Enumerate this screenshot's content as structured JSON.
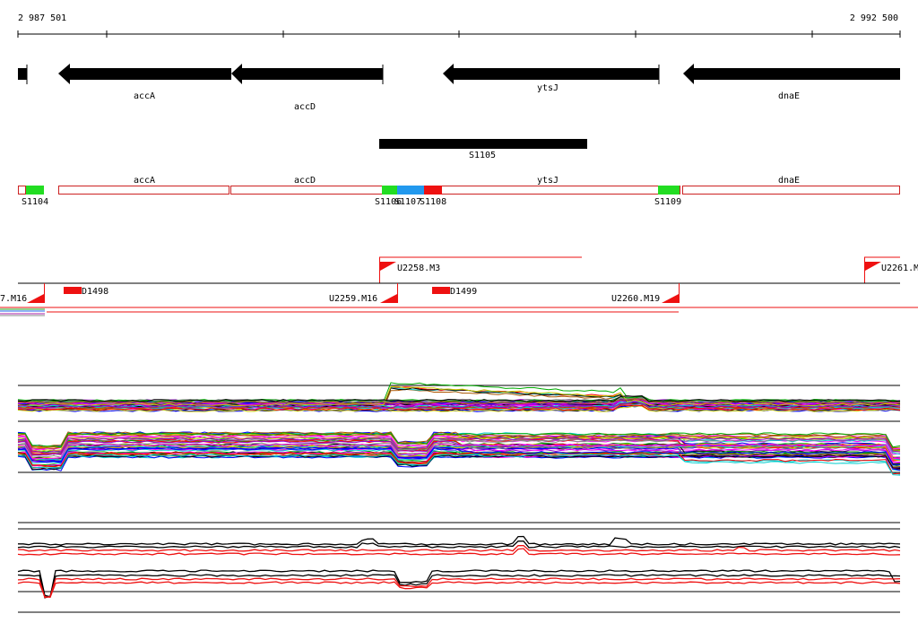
{
  "ruler": {
    "start": "2 987 501",
    "end": "2 992 500"
  },
  "genes": [
    {
      "name": "accA"
    },
    {
      "name": "accD"
    },
    {
      "name": "ytsJ"
    },
    {
      "name": "dnaE"
    }
  ],
  "feature": {
    "name": "S1105"
  },
  "segments": {
    "genes": [
      "accA",
      "accD",
      "ytsJ",
      "dnaE"
    ],
    "markers": [
      "S1104",
      "S1106",
      "S1107",
      "S1108",
      "S1109"
    ]
  },
  "promoters": [
    {
      "name": "U2258.M3"
    },
    {
      "name": "U2261.M"
    },
    {
      "name": "7.M16"
    },
    {
      "name": "U2259.M16"
    },
    {
      "name": "U2260.M19"
    },
    {
      "name": "D1498"
    },
    {
      "name": "D1499"
    }
  ],
  "colors": {
    "gene": "#000000",
    "segment_outline": "#cc2222",
    "marker_green": "#22dd22",
    "marker_blue": "#2299ee",
    "marker_red": "#ee1111",
    "promoter": "#ee1111",
    "profile_palette": [
      "#ff0000",
      "#00aa00",
      "#0000ff",
      "#ff00ff",
      "#00cccc",
      "#cccc00",
      "#888888",
      "#aa5500",
      "#000000",
      "#9900cc"
    ]
  }
}
